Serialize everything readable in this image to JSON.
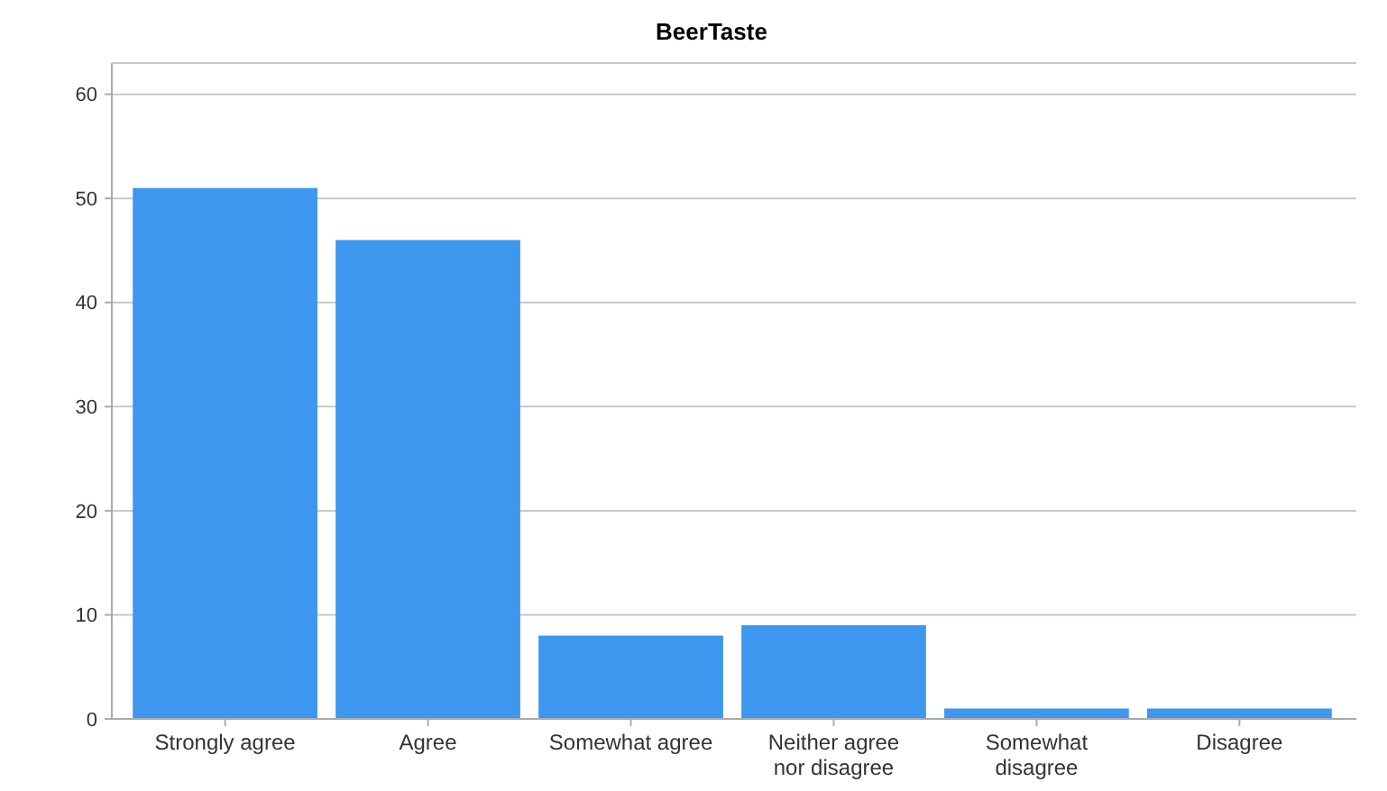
{
  "chart_data": {
    "type": "bar",
    "title": "BeerTaste",
    "categories": [
      "Strongly agree",
      "Agree",
      "Somewhat agree",
      "Neither agree nor disagree",
      "Somewhat disagree",
      "Disagree"
    ],
    "values": [
      51,
      46,
      8,
      9,
      1,
      1
    ],
    "color": "#3d97ee",
    "ylim": [
      0,
      63
    ],
    "yticks": [
      0,
      10,
      20,
      30,
      40,
      50,
      60
    ],
    "grid": "y"
  }
}
